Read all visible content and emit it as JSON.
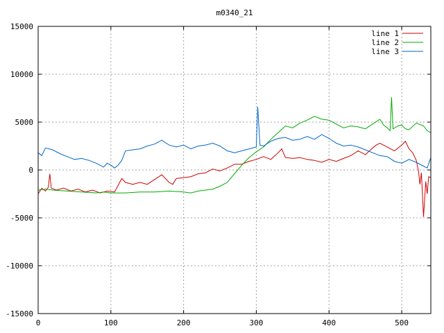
{
  "chart_data": {
    "type": "line",
    "title": "m0340_21",
    "xlabel": "",
    "ylabel": "",
    "xlim": [
      0,
      540
    ],
    "ylim": [
      -15000,
      15000
    ],
    "xticks": [
      "0",
      "100",
      "200",
      "300",
      "400",
      "500"
    ],
    "yticks": [
      "-15000",
      "-10000",
      "-5000",
      "0",
      "5000",
      "10000",
      "15000"
    ],
    "grid": true,
    "legend_position": "top-right",
    "series": [
      {
        "name": "line 1",
        "color": "#cc0000",
        "points": [
          [
            0,
            -2500
          ],
          [
            5,
            -1900
          ],
          [
            10,
            -2200
          ],
          [
            14,
            -1800
          ],
          [
            16,
            -400
          ],
          [
            18,
            -1900
          ],
          [
            25,
            -2100
          ],
          [
            35,
            -1900
          ],
          [
            45,
            -2200
          ],
          [
            55,
            -2000
          ],
          [
            65,
            -2300
          ],
          [
            75,
            -2100
          ],
          [
            85,
            -2400
          ],
          [
            95,
            -2200
          ],
          [
            105,
            -2300
          ],
          [
            110,
            -1600
          ],
          [
            115,
            -900
          ],
          [
            120,
            -1300
          ],
          [
            130,
            -1500
          ],
          [
            140,
            -1300
          ],
          [
            150,
            -1500
          ],
          [
            160,
            -1000
          ],
          [
            170,
            -500
          ],
          [
            180,
            -1300
          ],
          [
            185,
            -1500
          ],
          [
            190,
            -900
          ],
          [
            200,
            -800
          ],
          [
            210,
            -700
          ],
          [
            220,
            -400
          ],
          [
            230,
            -300
          ],
          [
            240,
            100
          ],
          [
            250,
            -100
          ],
          [
            260,
            200
          ],
          [
            270,
            600
          ],
          [
            280,
            600
          ],
          [
            290,
            900
          ],
          [
            300,
            1100
          ],
          [
            310,
            1400
          ],
          [
            320,
            1100
          ],
          [
            330,
            1800
          ],
          [
            335,
            2200
          ],
          [
            340,
            1300
          ],
          [
            350,
            1200
          ],
          [
            360,
            1300
          ],
          [
            370,
            1100
          ],
          [
            380,
            1000
          ],
          [
            390,
            800
          ],
          [
            400,
            1100
          ],
          [
            410,
            900
          ],
          [
            420,
            1200
          ],
          [
            430,
            1500
          ],
          [
            440,
            2000
          ],
          [
            450,
            1600
          ],
          [
            460,
            2300
          ],
          [
            465,
            2600
          ],
          [
            470,
            2800
          ],
          [
            480,
            2400
          ],
          [
            490,
            2000
          ],
          [
            500,
            2600
          ],
          [
            505,
            3000
          ],
          [
            510,
            2200
          ],
          [
            515,
            1800
          ],
          [
            520,
            1000
          ],
          [
            523,
            -100
          ],
          [
            525,
            -1500
          ],
          [
            527,
            -300
          ],
          [
            530,
            -4900
          ],
          [
            533,
            -1200
          ],
          [
            535,
            -2500
          ],
          [
            537,
            -700
          ],
          [
            540,
            -800
          ]
        ]
      },
      {
        "name": "line 2",
        "color": "#00aa00",
        "points": [
          [
            0,
            -2100
          ],
          [
            10,
            -2000
          ],
          [
            20,
            -2100
          ],
          [
            40,
            -2200
          ],
          [
            60,
            -2300
          ],
          [
            80,
            -2400
          ],
          [
            90,
            -2300
          ],
          [
            100,
            -2400
          ],
          [
            120,
            -2400
          ],
          [
            140,
            -2300
          ],
          [
            160,
            -2300
          ],
          [
            180,
            -2200
          ],
          [
            200,
            -2300
          ],
          [
            210,
            -2400
          ],
          [
            220,
            -2200
          ],
          [
            240,
            -2000
          ],
          [
            250,
            -1700
          ],
          [
            260,
            -1300
          ],
          [
            270,
            -400
          ],
          [
            280,
            500
          ],
          [
            290,
            1300
          ],
          [
            295,
            1600
          ],
          [
            300,
            1900
          ],
          [
            310,
            2400
          ],
          [
            320,
            3200
          ],
          [
            330,
            3900
          ],
          [
            340,
            4600
          ],
          [
            350,
            4400
          ],
          [
            360,
            4900
          ],
          [
            370,
            5200
          ],
          [
            380,
            5600
          ],
          [
            390,
            5300
          ],
          [
            400,
            5200
          ],
          [
            410,
            4800
          ],
          [
            420,
            4400
          ],
          [
            430,
            4600
          ],
          [
            440,
            4500
          ],
          [
            450,
            4300
          ],
          [
            460,
            4800
          ],
          [
            470,
            5300
          ],
          [
            475,
            4700
          ],
          [
            480,
            4400
          ],
          [
            484,
            4100
          ],
          [
            486,
            7600
          ],
          [
            488,
            4300
          ],
          [
            495,
            4600
          ],
          [
            500,
            4700
          ],
          [
            505,
            4300
          ],
          [
            510,
            4200
          ],
          [
            520,
            4900
          ],
          [
            530,
            4600
          ],
          [
            535,
            4100
          ],
          [
            540,
            3900
          ]
        ]
      },
      {
        "name": "line 3",
        "color": "#0066cc",
        "points": [
          [
            0,
            1800
          ],
          [
            5,
            1500
          ],
          [
            10,
            2300
          ],
          [
            20,
            2100
          ],
          [
            30,
            1700
          ],
          [
            40,
            1400
          ],
          [
            50,
            1100
          ],
          [
            60,
            1200
          ],
          [
            70,
            1000
          ],
          [
            80,
            700
          ],
          [
            90,
            300
          ],
          [
            95,
            700
          ],
          [
            100,
            500
          ],
          [
            105,
            200
          ],
          [
            110,
            500
          ],
          [
            115,
            1000
          ],
          [
            120,
            2000
          ],
          [
            130,
            2100
          ],
          [
            140,
            2200
          ],
          [
            150,
            2500
          ],
          [
            160,
            2700
          ],
          [
            170,
            3100
          ],
          [
            180,
            2600
          ],
          [
            190,
            2400
          ],
          [
            200,
            2600
          ],
          [
            210,
            2200
          ],
          [
            220,
            2500
          ],
          [
            230,
            2600
          ],
          [
            240,
            2800
          ],
          [
            250,
            2500
          ],
          [
            260,
            2000
          ],
          [
            270,
            1800
          ],
          [
            280,
            2000
          ],
          [
            290,
            2200
          ],
          [
            300,
            2400
          ],
          [
            302,
            6600
          ],
          [
            305,
            2600
          ],
          [
            310,
            2500
          ],
          [
            320,
            3000
          ],
          [
            330,
            3300
          ],
          [
            340,
            3400
          ],
          [
            350,
            3100
          ],
          [
            360,
            3200
          ],
          [
            370,
            3500
          ],
          [
            380,
            3200
          ],
          [
            390,
            3700
          ],
          [
            400,
            3300
          ],
          [
            410,
            2800
          ],
          [
            420,
            2500
          ],
          [
            430,
            2600
          ],
          [
            440,
            2400
          ],
          [
            450,
            2100
          ],
          [
            460,
            1800
          ],
          [
            470,
            1500
          ],
          [
            480,
            1400
          ],
          [
            490,
            900
          ],
          [
            500,
            700
          ],
          [
            510,
            1100
          ],
          [
            520,
            800
          ],
          [
            530,
            400
          ],
          [
            535,
            200
          ],
          [
            540,
            1300
          ]
        ]
      }
    ]
  }
}
